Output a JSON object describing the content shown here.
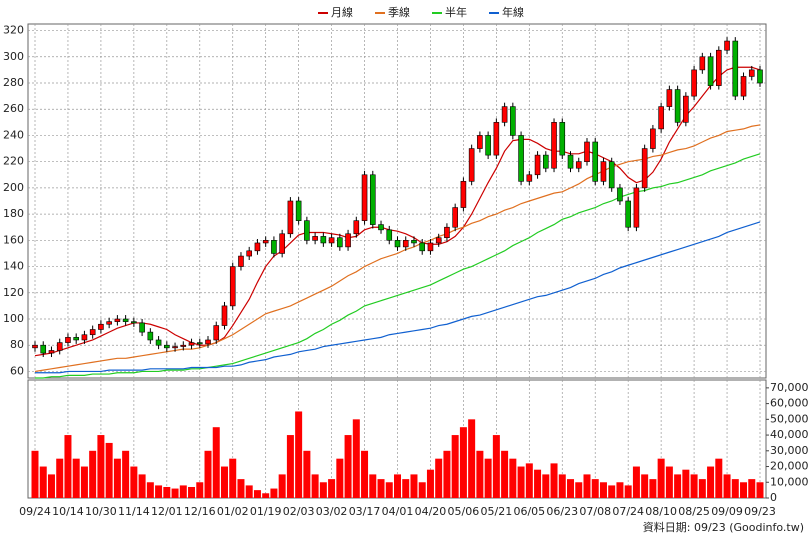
{
  "chart_data": {
    "type": "candlestick",
    "categories": [
      "09/24",
      null,
      null,
      null,
      "10/14",
      null,
      null,
      null,
      "10/30",
      null,
      null,
      null,
      "11/14",
      null,
      null,
      null,
      "12/01",
      null,
      null,
      null,
      "12/16",
      null,
      null,
      null,
      "01/02",
      null,
      null,
      null,
      "01/19",
      null,
      null,
      null,
      "02/03",
      null,
      null,
      null,
      "03/02",
      null,
      null,
      null,
      "03/17",
      null,
      null,
      null,
      "04/01",
      null,
      null,
      null,
      "04/20",
      null,
      null,
      null,
      "05/06",
      null,
      null,
      null,
      "05/21",
      null,
      null,
      null,
      "06/05",
      null,
      null,
      null,
      "06/23",
      null,
      null,
      null,
      "07/08",
      null,
      null,
      null,
      "07/24",
      null,
      null,
      null,
      "08/10",
      null,
      null,
      null,
      "08/25",
      null,
      null,
      null,
      "09/09",
      null,
      null,
      null,
      "09/23"
    ],
    "open": [
      78,
      80,
      74,
      76,
      82,
      86,
      84,
      88,
      92,
      96,
      98,
      100,
      98,
      97,
      90,
      84,
      80,
      78,
      79,
      80,
      82,
      81,
      84,
      95,
      110,
      140,
      148,
      152,
      158,
      160,
      150,
      165,
      190,
      175,
      160,
      163,
      158,
      162,
      155,
      165,
      175,
      210,
      172,
      168,
      160,
      155,
      160,
      158,
      152,
      158,
      162,
      170,
      185,
      205,
      230,
      240,
      225,
      250,
      262,
      240,
      205,
      210,
      225,
      215,
      250,
      225,
      215,
      220,
      235,
      205,
      220,
      200,
      190,
      170,
      200,
      230,
      245,
      262,
      275,
      250,
      270,
      290,
      300,
      278,
      305,
      312,
      270,
      285,
      290
    ],
    "high": [
      83,
      83,
      79,
      85,
      89,
      89,
      91,
      95,
      99,
      101,
      103,
      103,
      101,
      100,
      93,
      87,
      83,
      82,
      83,
      85,
      85,
      87,
      98,
      113,
      143,
      151,
      155,
      161,
      163,
      163,
      168,
      193,
      193,
      178,
      166,
      166,
      165,
      165,
      168,
      178,
      213,
      213,
      175,
      171,
      163,
      163,
      163,
      161,
      161,
      165,
      173,
      188,
      208,
      233,
      243,
      243,
      253,
      265,
      265,
      243,
      213,
      228,
      228,
      253,
      253,
      228,
      223,
      238,
      238,
      223,
      223,
      203,
      193,
      203,
      233,
      248,
      265,
      278,
      278,
      273,
      293,
      303,
      303,
      308,
      315,
      315,
      288,
      293,
      293
    ],
    "low": [
      75,
      71,
      71,
      73,
      79,
      81,
      81,
      85,
      89,
      93,
      95,
      95,
      94,
      87,
      81,
      77,
      75,
      75,
      76,
      77,
      78,
      78,
      81,
      92,
      107,
      137,
      145,
      149,
      155,
      147,
      147,
      162,
      172,
      157,
      157,
      155,
      155,
      152,
      152,
      162,
      172,
      169,
      165,
      157,
      152,
      152,
      155,
      149,
      149,
      155,
      159,
      167,
      182,
      202,
      227,
      222,
      222,
      247,
      237,
      202,
      202,
      207,
      212,
      212,
      222,
      212,
      212,
      217,
      202,
      202,
      197,
      187,
      167,
      167,
      197,
      227,
      242,
      259,
      247,
      247,
      267,
      287,
      275,
      275,
      302,
      267,
      267,
      282,
      277
    ],
    "close": [
      80,
      74,
      76,
      82,
      86,
      84,
      88,
      92,
      96,
      98,
      100,
      98,
      97,
      90,
      84,
      80,
      78,
      79,
      80,
      82,
      81,
      84,
      95,
      110,
      140,
      148,
      152,
      158,
      160,
      150,
      165,
      190,
      175,
      160,
      163,
      158,
      162,
      155,
      165,
      175,
      210,
      172,
      168,
      160,
      155,
      160,
      158,
      152,
      158,
      162,
      170,
      185,
      205,
      230,
      240,
      225,
      250,
      262,
      240,
      205,
      210,
      225,
      215,
      250,
      225,
      215,
      220,
      235,
      205,
      220,
      200,
      190,
      170,
      200,
      230,
      245,
      262,
      275,
      250,
      270,
      290,
      300,
      278,
      305,
      312,
      270,
      285,
      290,
      280
    ],
    "up_color": "#ff0000",
    "down_color": "#00b000",
    "series": [
      {
        "name": "月線",
        "color": "#cc0000",
        "values": [
          72,
          73,
          74,
          76,
          78,
          80,
          82,
          84,
          87,
          90,
          93,
          95,
          97,
          97,
          96,
          94,
          92,
          88,
          85,
          82,
          80,
          80,
          82,
          86,
          95,
          105,
          115,
          128,
          140,
          148,
          152,
          158,
          164,
          166,
          166,
          166,
          165,
          164,
          162,
          163,
          168,
          170,
          170,
          168,
          167,
          165,
          162,
          158,
          157,
          157,
          159,
          163,
          170,
          180,
          192,
          204,
          215,
          228,
          236,
          237,
          237,
          234,
          230,
          228,
          228,
          226,
          226,
          228,
          226,
          223,
          220,
          215,
          208,
          204,
          206,
          212,
          222,
          235,
          245,
          255,
          262,
          270,
          278,
          285,
          290,
          292,
          292,
          292,
          290
        ]
      },
      {
        "name": "季線",
        "color": "#e07020",
        "values": [
          60,
          61,
          62,
          63,
          64,
          65,
          66,
          67,
          68,
          69,
          70,
          70,
          71,
          72,
          73,
          74,
          75,
          76,
          77,
          77,
          78,
          80,
          82,
          85,
          88,
          92,
          96,
          100,
          104,
          106,
          108,
          110,
          113,
          116,
          119,
          122,
          125,
          129,
          133,
          136,
          140,
          143,
          146,
          148,
          150,
          153,
          155,
          158,
          160,
          163,
          165,
          168,
          170,
          173,
          175,
          178,
          180,
          183,
          185,
          188,
          190,
          192,
          194,
          196,
          197,
          200,
          203,
          207,
          210,
          213,
          216,
          218,
          220,
          221,
          222,
          224,
          225,
          227,
          229,
          230,
          232,
          235,
          238,
          240,
          243,
          244,
          245,
          247,
          248
        ]
      },
      {
        "name": "半年",
        "color": "#22cc22",
        "values": [
          55,
          55,
          56,
          56,
          57,
          57,
          57,
          58,
          58,
          58,
          59,
          59,
          59,
          60,
          60,
          60,
          61,
          61,
          61,
          62,
          62,
          63,
          64,
          65,
          66,
          68,
          70,
          72,
          74,
          76,
          78,
          80,
          82,
          85,
          89,
          92,
          96,
          99,
          103,
          106,
          110,
          112,
          114,
          116,
          118,
          120,
          122,
          124,
          126,
          129,
          132,
          135,
          138,
          140,
          143,
          146,
          149,
          152,
          156,
          159,
          162,
          166,
          169,
          172,
          176,
          178,
          181,
          183,
          185,
          188,
          190,
          193,
          195,
          197,
          198,
          200,
          201,
          203,
          204,
          206,
          208,
          210,
          213,
          215,
          217,
          219,
          222,
          224,
          226
        ]
      },
      {
        "name": "年線",
        "color": "#1060d0",
        "values": [
          59,
          59,
          59,
          59,
          60,
          60,
          60,
          60,
          60,
          61,
          61,
          61,
          61,
          61,
          62,
          62,
          62,
          62,
          62,
          63,
          63,
          63,
          63,
          64,
          64,
          65,
          67,
          68,
          69,
          71,
          72,
          73,
          75,
          76,
          77,
          79,
          80,
          81,
          82,
          83,
          84,
          85,
          86,
          88,
          89,
          90,
          91,
          92,
          93,
          95,
          96,
          98,
          100,
          102,
          103,
          105,
          107,
          109,
          111,
          113,
          115,
          117,
          118,
          120,
          122,
          124,
          127,
          129,
          131,
          134,
          136,
          139,
          141,
          143,
          145,
          147,
          149,
          151,
          153,
          155,
          157,
          159,
          161,
          163,
          166,
          168,
          170,
          172,
          174
        ]
      }
    ],
    "ylim": [
      55,
      325
    ],
    "yticks": [
      60,
      80,
      100,
      120,
      140,
      160,
      180,
      200,
      220,
      240,
      260,
      280,
      300,
      320
    ],
    "grid": true,
    "volume": {
      "color": "#ff0000",
      "values": [
        30000,
        20000,
        15000,
        25000,
        40000,
        25000,
        20000,
        30000,
        40000,
        35000,
        25000,
        30000,
        20000,
        15000,
        10000,
        8000,
        7000,
        6000,
        8000,
        7000,
        10000,
        30000,
        45000,
        20000,
        25000,
        12000,
        8000,
        5000,
        3000,
        6000,
        15000,
        40000,
        55000,
        30000,
        15000,
        10000,
        12000,
        25000,
        40000,
        50000,
        30000,
        15000,
        12000,
        10000,
        15000,
        12000,
        15000,
        10000,
        18000,
        25000,
        30000,
        40000,
        45000,
        50000,
        30000,
        25000,
        40000,
        30000,
        25000,
        20000,
        22000,
        18000,
        15000,
        22000,
        15000,
        12000,
        10000,
        15000,
        12000,
        10000,
        8000,
        10000,
        8000,
        20000,
        15000,
        12000,
        25000,
        20000,
        15000,
        18000,
        15000,
        12000,
        20000,
        25000,
        15000,
        12000,
        10000,
        12000,
        10000
      ],
      "ylim": [
        0,
        75000
      ],
      "yticks": [
        0,
        {
          "value": 10000,
          "label": "10,000"
        },
        {
          "value": 20000,
          "label": "20,000"
        },
        {
          "value": 30000,
          "label": "30,000"
        },
        {
          "value": 40000,
          "label": "40,000"
        },
        {
          "value": 50000,
          "label": "50,000"
        },
        {
          "value": 60000,
          "label": "60,000"
        },
        {
          "value": 70000,
          "label": "70,000"
        }
      ]
    },
    "footnote": "資料日期: 09/23 (Goodinfo.tw)"
  }
}
